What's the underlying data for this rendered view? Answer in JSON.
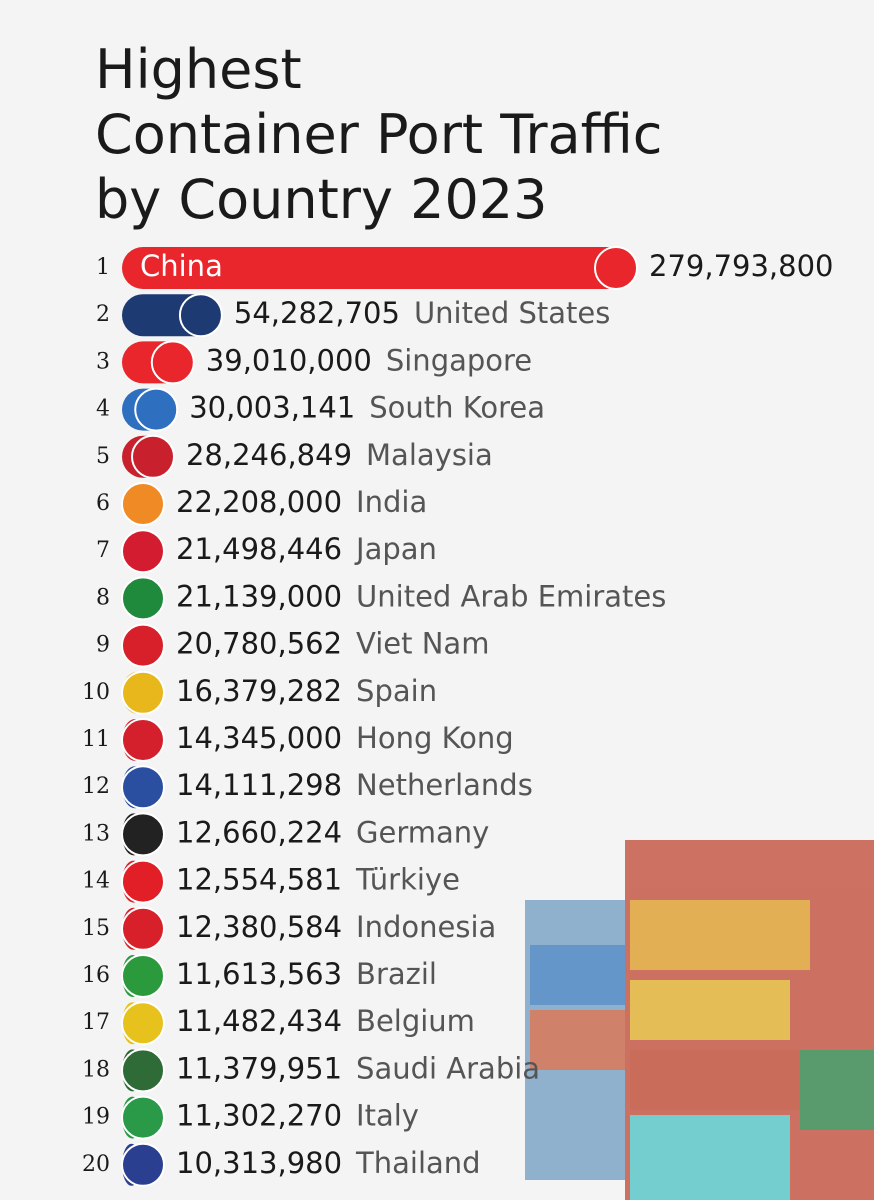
{
  "chart_data": {
    "type": "bar-race",
    "title": [
      "Highest",
      "Container Port Traffic",
      "by Country 2023"
    ],
    "ranks": [
      1,
      2,
      3,
      4,
      5,
      6,
      7,
      8,
      9,
      10,
      11,
      12,
      13,
      14,
      15,
      16,
      17,
      18,
      19,
      20
    ],
    "categories": [
      "China",
      "United States",
      "Singapore",
      "South Korea",
      "Malaysia",
      "India",
      "Japan",
      "United Arab Emirates",
      "Viet Nam",
      "Spain",
      "Hong Kong",
      "Netherlands",
      "Germany",
      "Türkiye",
      "Indonesia",
      "Brazil",
      "Belgium",
      "Saudi Arabia",
      "Italy",
      "Thailand"
    ],
    "values": [
      279793800,
      54282705,
      39010000,
      30003141,
      28246849,
      22208000,
      21498446,
      21139000,
      20780562,
      16379282,
      14345000,
      14111298,
      12660224,
      12554581,
      12380584,
      11613563,
      11482434,
      11379951,
      11302270,
      10313980
    ],
    "value_labels": [
      "279,793,800",
      "54,282,705",
      "39,010,000",
      "30,003,141",
      "28,246,849",
      "22,208,000",
      "21,498,446",
      "21,139,000",
      "20,780,562",
      "16,379,282",
      "14,345,000",
      "14,111,298",
      "12,660,224",
      "12,554,581",
      "12,380,584",
      "11,613,563",
      "11,482,434",
      "11,379,951",
      "11,302,270",
      "10,313,980"
    ],
    "colors": [
      "#e8262b",
      "#1d3a72",
      "#e8262b",
      "#2f6fc0",
      "#c8202c",
      "#f08a24",
      "#d41c30",
      "#1f8a3c",
      "#d8202a",
      "#e8b71c",
      "#d4202c",
      "#2a4fa0",
      "#222222",
      "#e21e26",
      "#d8202a",
      "#2a9a3c",
      "#e8c21c",
      "#2e6b36",
      "#2a9a48",
      "#2a3f8f"
    ]
  }
}
